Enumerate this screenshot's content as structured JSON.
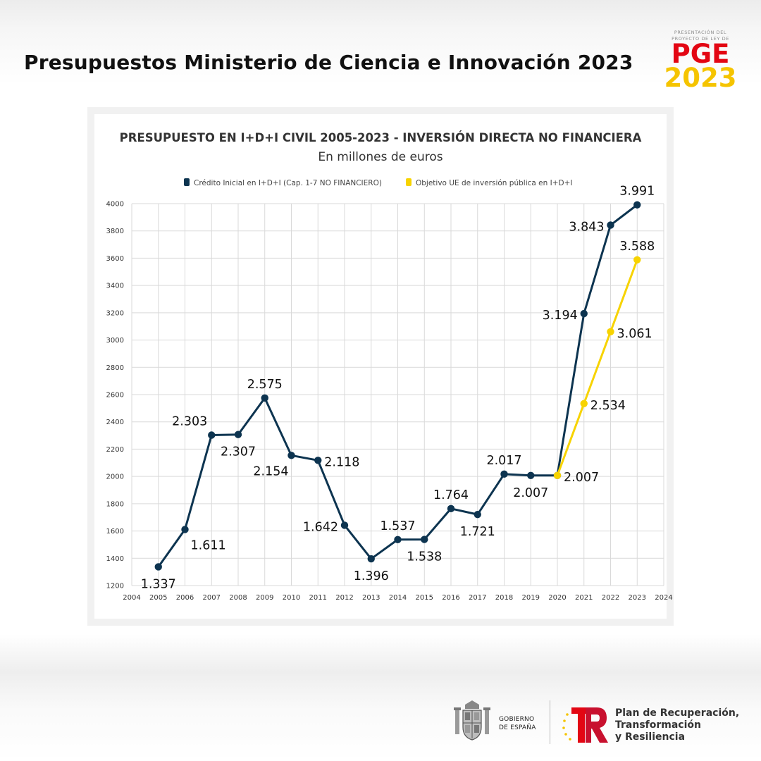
{
  "header": {
    "title": "Presupuestos Ministerio de Ciencia e Innovación 2023",
    "pge_logo": {
      "line1": "PRESENTACIÓN DEL",
      "line2": "PROYECTO DE LEY DE",
      "name": "PGE",
      "year": "2023"
    }
  },
  "colors": {
    "series_main": "#0d3450",
    "series_target": "#f7d300",
    "grid": "#d9d9d9"
  },
  "chart_data": {
    "type": "line",
    "title": "PRESUPUESTO EN I+D+I CIVIL 2005-2023 - INVERSIÓN DIRECTA NO FINANCIERA",
    "subtitle": "En millones de euros",
    "xlabel": "",
    "ylabel": "",
    "xlim": [
      2004,
      2024
    ],
    "ylim": [
      1200,
      4000
    ],
    "x_ticks": [
      2004,
      2005,
      2006,
      2007,
      2008,
      2009,
      2010,
      2011,
      2012,
      2013,
      2014,
      2015,
      2016,
      2017,
      2018,
      2019,
      2020,
      2021,
      2022,
      2023,
      2024
    ],
    "y_ticks": [
      1200,
      1400,
      1600,
      1800,
      2000,
      2200,
      2400,
      2600,
      2800,
      3000,
      3200,
      3400,
      3600,
      3800,
      4000
    ],
    "grid": true,
    "legend_position": "top",
    "series": [
      {
        "name": "Crédito Inicial en I+D+I (Cap. 1-7 NO FINANCIERO)",
        "color": "#0d3450",
        "x": [
          2005,
          2006,
          2007,
          2008,
          2009,
          2010,
          2011,
          2012,
          2013,
          2014,
          2015,
          2016,
          2017,
          2018,
          2019,
          2020,
          2021,
          2022,
          2023
        ],
        "values": [
          1337,
          1611,
          2303,
          2307,
          2575,
          2154,
          2118,
          1642,
          1396,
          1537,
          1538,
          1764,
          1721,
          2017,
          2007,
          2007,
          3194,
          3843,
          3991
        ],
        "labels": [
          "1.337",
          "1.611",
          "2.303",
          "2.307",
          "2.575",
          "2.154",
          "2.118",
          "1.642",
          "1.396",
          "1.537",
          "1.538",
          "1.764",
          "1.721",
          "2.017",
          "2.007",
          "",
          "3.194",
          "3.843",
          "3.991"
        ],
        "label_pos": [
          "below",
          "below-right",
          "above-left",
          "below",
          "above",
          "below-left",
          "right",
          "left",
          "below",
          "above",
          "below",
          "above",
          "below",
          "above",
          "below",
          "",
          "left",
          "left",
          "above"
        ]
      },
      {
        "name": "Objetivo UE de inversión pública en I+D+I",
        "color": "#f7d300",
        "x": [
          2020,
          2021,
          2022,
          2023
        ],
        "values": [
          2007,
          2534,
          3061,
          3588
        ],
        "labels": [
          "2.007",
          "2.534",
          "3.061",
          "3.588"
        ],
        "label_pos": [
          "right",
          "right",
          "right",
          "above"
        ]
      }
    ]
  },
  "footer": {
    "gov_line1": "GOBIERNO",
    "gov_line2": "DE ESPAÑA",
    "plan_line1": "Plan de Recuperación,",
    "plan_line2": "Transformación",
    "plan_line3": "y Resiliencia"
  }
}
